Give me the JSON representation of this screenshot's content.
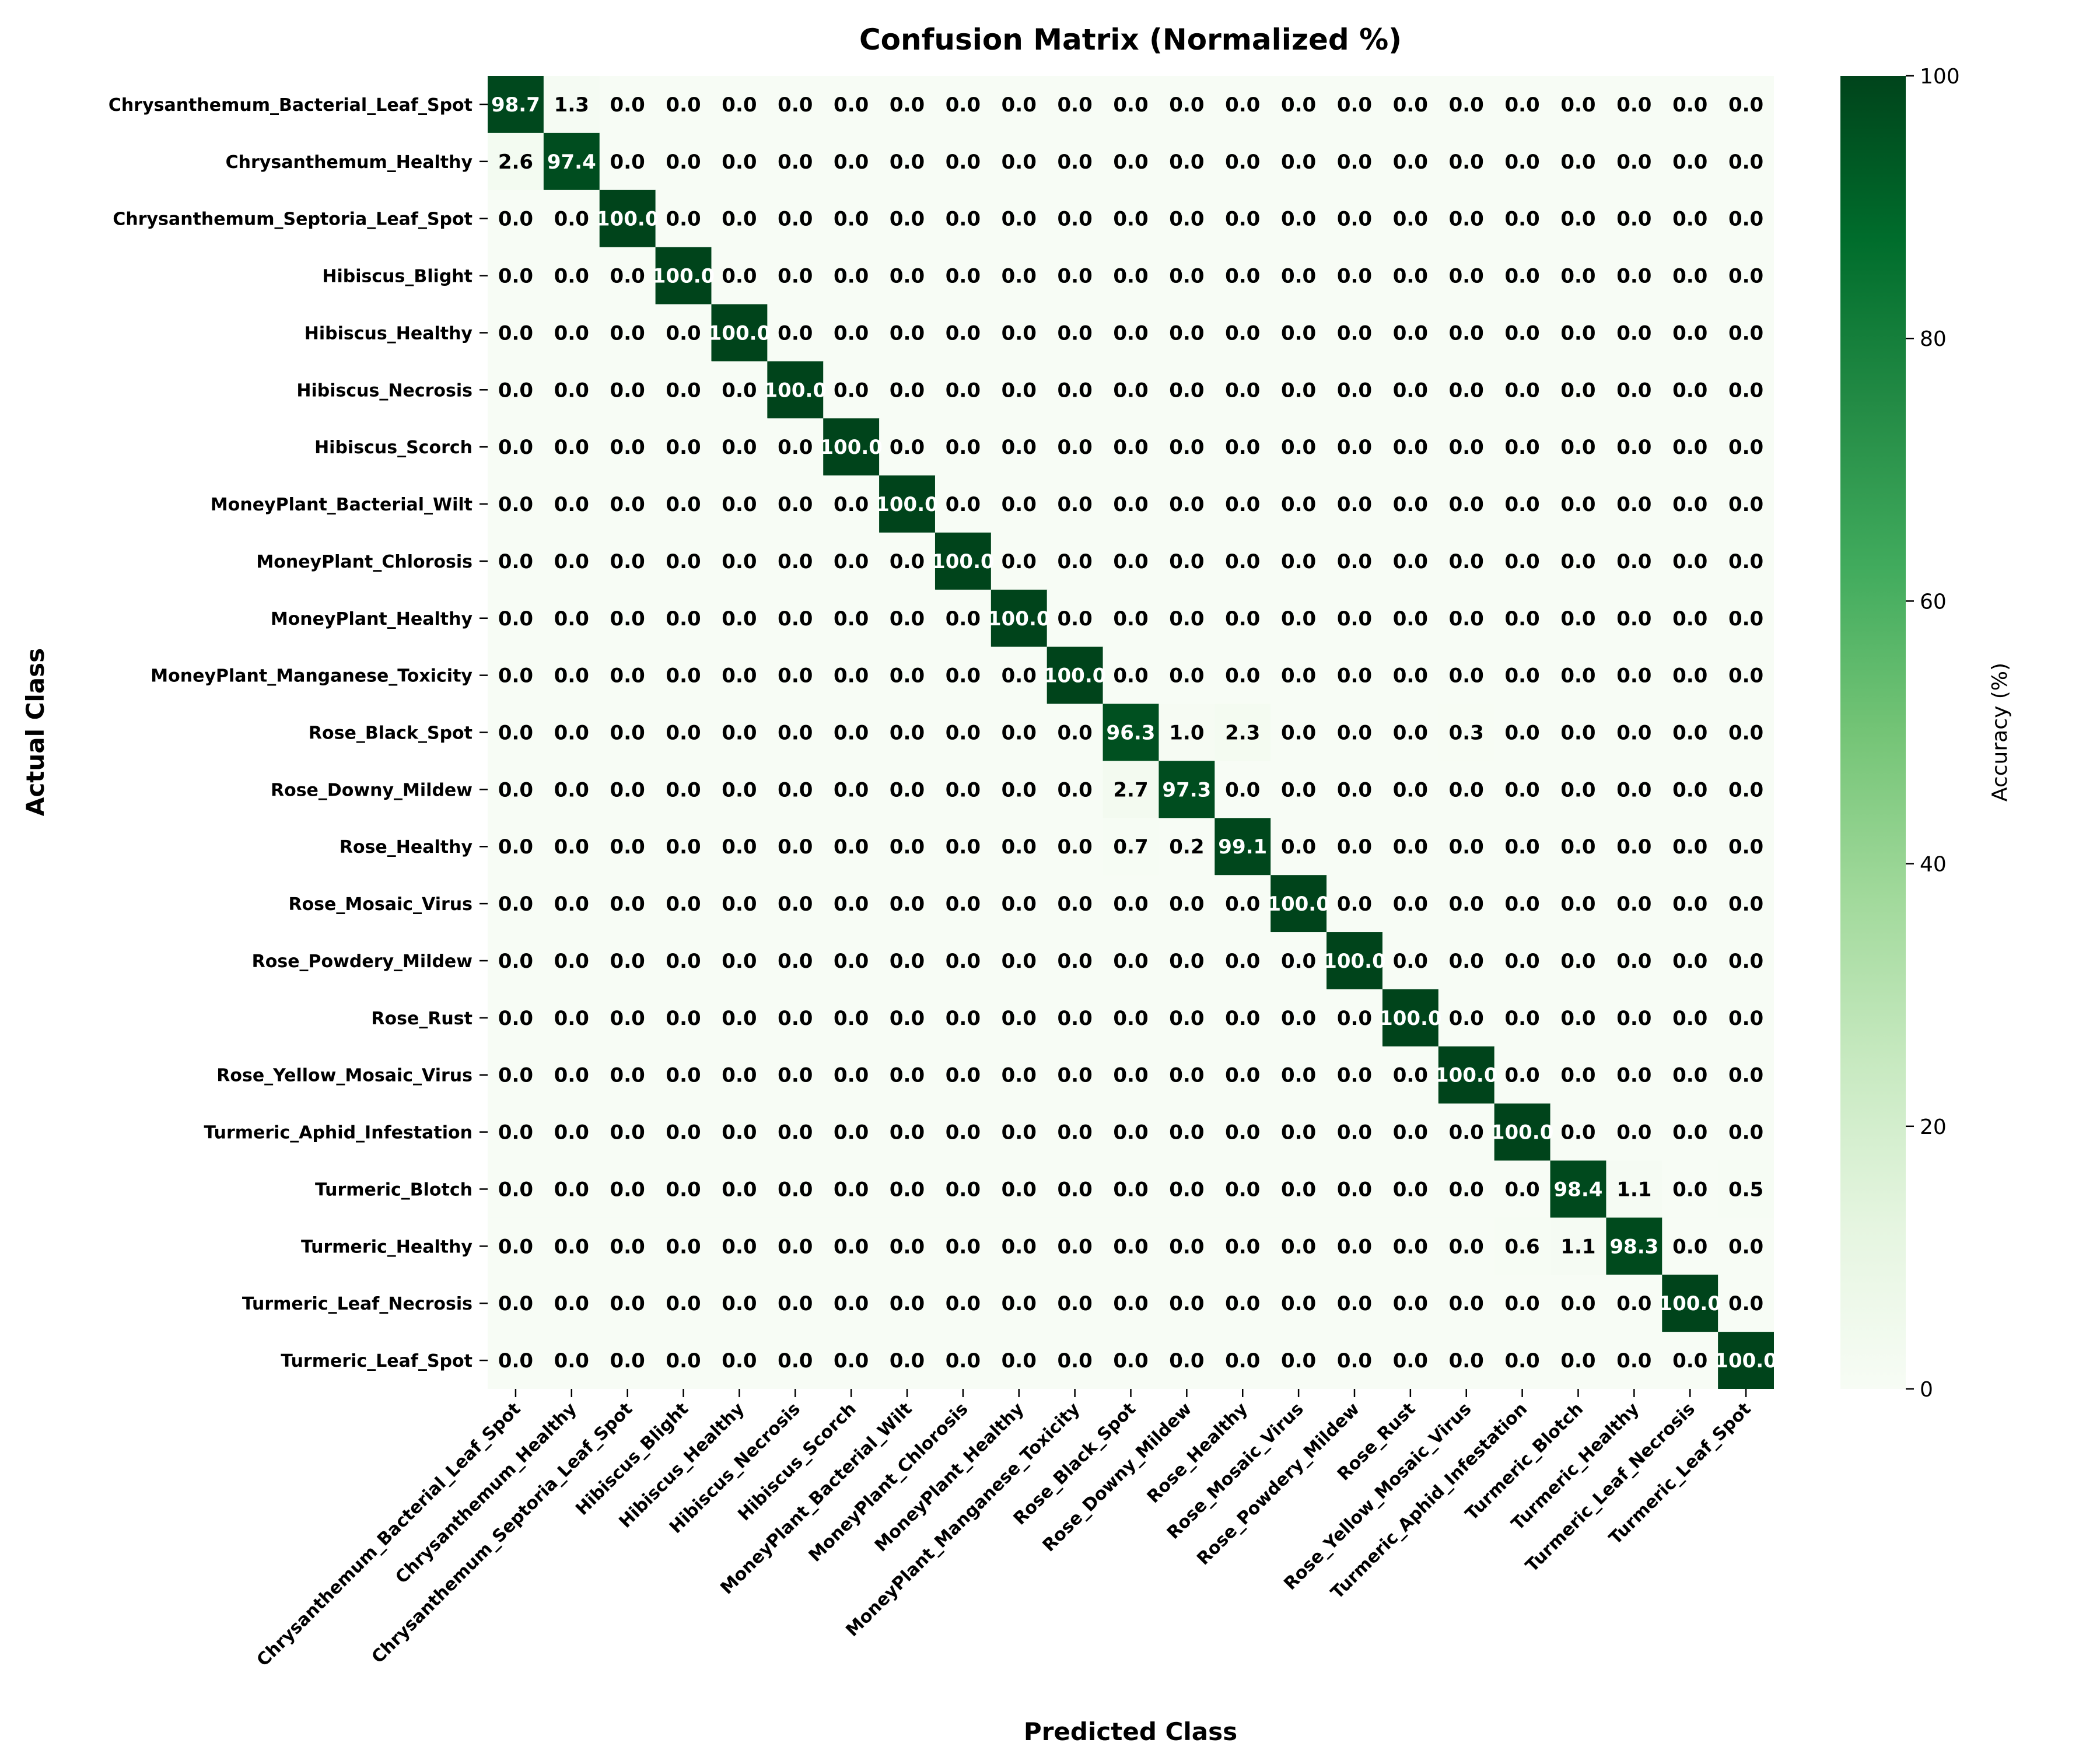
{
  "chart_data": {
    "type": "heatmap",
    "title": "Confusion Matrix (Normalized %)",
    "xlabel": "Predicted Class",
    "ylabel": "Actual Class",
    "colorbar_label": "Accuracy (%)",
    "colorbar_range": [
      0,
      100
    ],
    "colorbar_ticks": [
      "0",
      "20",
      "40",
      "60",
      "80",
      "100"
    ],
    "colormap": [
      "#f7fcf5",
      "#e5f5e0",
      "#c7e9c0",
      "#a1d99b",
      "#74c476",
      "#41ab5d",
      "#238b45",
      "#006d2c",
      "#00441b"
    ],
    "grid": false,
    "legend": "colorbar-right",
    "classes": [
      "Chrysanthemum_Bacterial_Leaf_Spot",
      "Chrysanthemum_Healthy",
      "Chrysanthemum_Septoria_Leaf_Spot",
      "Hibiscus_Blight",
      "Hibiscus_Healthy",
      "Hibiscus_Necrosis",
      "Hibiscus_Scorch",
      "MoneyPlant_Bacterial_Wilt",
      "MoneyPlant_Chlorosis",
      "MoneyPlant_Healthy",
      "MoneyPlant_Manganese_Toxicity",
      "Rose_Black_Spot",
      "Rose_Downy_Mildew",
      "Rose_Healthy",
      "Rose_Mosaic_Virus",
      "Rose_Powdery_Mildew",
      "Rose_Rust",
      "Rose_Yellow_Mosaic_Virus",
      "Turmeric_Aphid_Infestation",
      "Turmeric_Blotch",
      "Turmeric_Healthy",
      "Turmeric_Leaf_Necrosis",
      "Turmeric_Leaf_Spot"
    ],
    "off_diagonal": [
      {
        "row": 0,
        "col": 1,
        "value": 1.3
      },
      {
        "row": 1,
        "col": 0,
        "value": 2.6
      },
      {
        "row": 11,
        "col": 12,
        "value": 1.0
      },
      {
        "row": 11,
        "col": 13,
        "value": 2.3
      },
      {
        "row": 11,
        "col": 17,
        "value": 0.3
      },
      {
        "row": 12,
        "col": 11,
        "value": 2.7
      },
      {
        "row": 13,
        "col": 11,
        "value": 0.7
      },
      {
        "row": 13,
        "col": 12,
        "value": 0.2
      },
      {
        "row": 19,
        "col": 20,
        "value": 1.1
      },
      {
        "row": 19,
        "col": 22,
        "value": 0.5
      },
      {
        "row": 20,
        "col": 18,
        "value": 0.6
      },
      {
        "row": 20,
        "col": 19,
        "value": 1.1
      }
    ],
    "diagonal": [
      98.7,
      97.4,
      100.0,
      100.0,
      100.0,
      100.0,
      100.0,
      100.0,
      100.0,
      100.0,
      100.0,
      96.3,
      97.3,
      99.1,
      100.0,
      100.0,
      100.0,
      100.0,
      100.0,
      98.4,
      98.3,
      100.0,
      100.0
    ],
    "value_format": "one decimal"
  }
}
